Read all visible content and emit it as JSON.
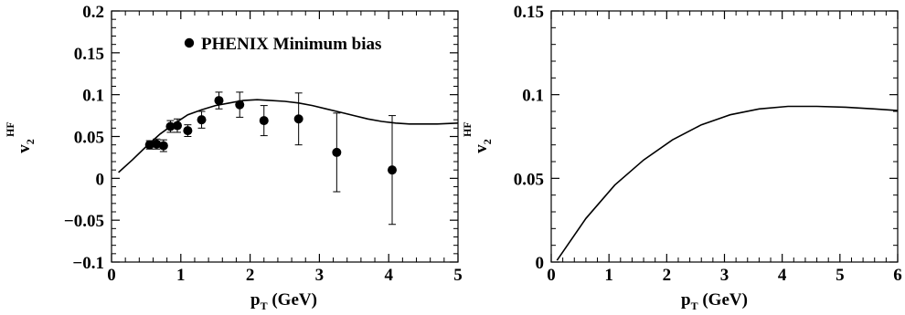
{
  "chart_data": [
    {
      "type": "scatter",
      "xlabel_main": "p",
      "xlabel_sub": "T",
      "xlabel_unit": " (GeV)",
      "ylabel_main": "v",
      "ylabel_sub": "2",
      "ylabel_sup": "HF",
      "xlim": [
        0,
        5
      ],
      "ylim": [
        -0.1,
        0.2
      ],
      "xticks": [
        "0",
        "1",
        "2",
        "3",
        "4",
        "5"
      ],
      "yticks": [
        "−0.1",
        "−0.05",
        "0",
        "0.05",
        "0.1",
        "0.15",
        "0.2"
      ],
      "legend": "PHENIX Minimum bias",
      "grid": false,
      "series": [
        {
          "name": "PHENIX Minimum bias",
          "kind": "points",
          "points": [
            {
              "x": 0.55,
              "y": 0.04,
              "err": 0.005
            },
            {
              "x": 0.65,
              "y": 0.041,
              "err": 0.006
            },
            {
              "x": 0.75,
              "y": 0.039,
              "err": 0.007
            },
            {
              "x": 0.85,
              "y": 0.062,
              "err": 0.007
            },
            {
              "x": 0.95,
              "y": 0.063,
              "err": 0.008
            },
            {
              "x": 1.1,
              "y": 0.057,
              "err": 0.007
            },
            {
              "x": 1.3,
              "y": 0.07,
              "err": 0.01
            },
            {
              "x": 1.55,
              "y": 0.093,
              "err": 0.01
            },
            {
              "x": 1.85,
              "y": 0.088,
              "err": 0.015
            },
            {
              "x": 2.2,
              "y": 0.069,
              "err": 0.018
            },
            {
              "x": 2.7,
              "y": 0.071,
              "err": 0.031
            },
            {
              "x": 3.25,
              "y": 0.031,
              "err": 0.047
            },
            {
              "x": 4.05,
              "y": 0.01,
              "err": 0.065
            }
          ]
        },
        {
          "kind": "line",
          "x": [
            0.1,
            0.3,
            0.5,
            0.7,
            0.9,
            1.1,
            1.3,
            1.5,
            1.7,
            1.9,
            2.1,
            2.3,
            2.5,
            2.7,
            2.9,
            3.1,
            3.3,
            3.5,
            3.7,
            3.9,
            4.1,
            4.3,
            4.5,
            4.7,
            5.0
          ],
          "y": [
            0.007,
            0.022,
            0.038,
            0.053,
            0.065,
            0.076,
            0.082,
            0.087,
            0.09,
            0.093,
            0.094,
            0.093,
            0.092,
            0.09,
            0.087,
            0.083,
            0.079,
            0.075,
            0.071,
            0.068,
            0.066,
            0.065,
            0.065,
            0.065,
            0.066
          ]
        }
      ]
    },
    {
      "type": "line",
      "xlabel_main": "p",
      "xlabel_sub": "T",
      "xlabel_unit": " (GeV)",
      "ylabel_main": "v",
      "ylabel_sub": "2",
      "ylabel_sup": "HF",
      "xlim": [
        0,
        6
      ],
      "ylim": [
        0,
        0.15
      ],
      "xticks": [
        "0",
        "1",
        "2",
        "3",
        "4",
        "5",
        "6"
      ],
      "yticks": [
        "0",
        "0.05",
        "0.1",
        "0.15"
      ],
      "grid": false,
      "series": [
        {
          "kind": "line",
          "x": [
            0.1,
            0.6,
            1.1,
            1.6,
            2.1,
            2.6,
            3.1,
            3.6,
            4.1,
            4.6,
            5.1,
            5.6,
            6.0
          ],
          "y": [
            0.001,
            0.026,
            0.046,
            0.061,
            0.073,
            0.082,
            0.088,
            0.0915,
            0.093,
            0.093,
            0.0925,
            0.0915,
            0.0905
          ]
        }
      ]
    }
  ]
}
